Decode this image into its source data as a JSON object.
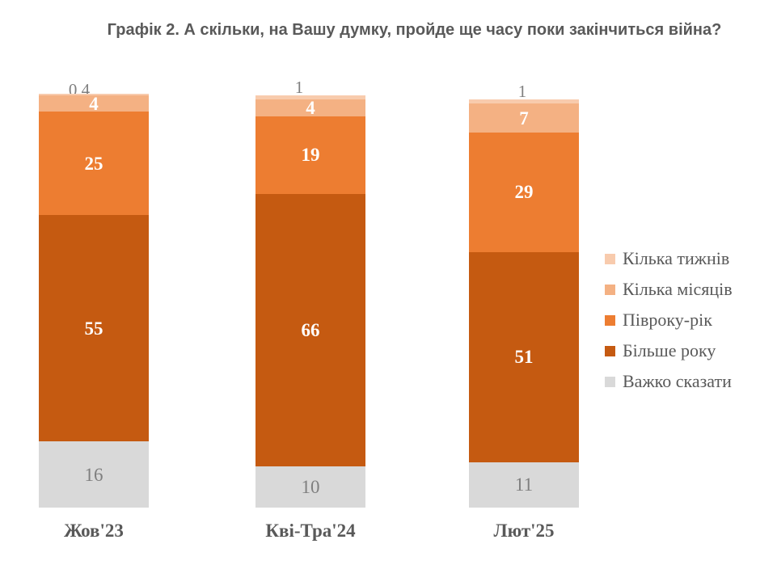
{
  "title": "Графік 2. А скільки, на Вашу думку, пройде ще часу поки закінчиться війна?",
  "chart_data": {
    "type": "bar",
    "stacked": true,
    "orientation": "vertical",
    "unit": "percent",
    "title": "Графік 2. А скільки, на Вашу думку, пройде ще часу поки закінчиться війна?",
    "categories": [
      "Жов'23",
      "Кві-Тра'24",
      "Лют'25"
    ],
    "series": [
      {
        "name": "Кілька тижнів",
        "color": "#F8CBAD",
        "label_color": "#7F7F7F",
        "values": [
          0.4,
          1,
          1
        ],
        "labels": [
          "0,4",
          "1",
          "1"
        ]
      },
      {
        "name": "Кілька місяців",
        "color": "#F4B183",
        "label_color": "#FFFFFF",
        "values": [
          4,
          4,
          7
        ],
        "labels": [
          "4",
          "4",
          "7"
        ]
      },
      {
        "name": "Півроку-рік",
        "color": "#ED7D31",
        "label_color": "#FFFFFF",
        "values": [
          25,
          19,
          29
        ],
        "labels": [
          "25",
          "19",
          "29"
        ]
      },
      {
        "name": "Більше року",
        "color": "#C55A11",
        "label_color": "#FFFFFF",
        "values": [
          55,
          66,
          51
        ],
        "labels": [
          "55",
          "66",
          "51"
        ]
      },
      {
        "name": "Важко сказати",
        "color": "#D9D9D9",
        "label_color": "#7F7F7F",
        "values": [
          16,
          10,
          11
        ],
        "labels": [
          "16",
          "10",
          "11"
        ]
      }
    ],
    "legend_position": "right",
    "legend_text_color": "#595959",
    "axis_text_color": "#595959",
    "title_color": "#595959",
    "background": "#FFFFFF"
  }
}
